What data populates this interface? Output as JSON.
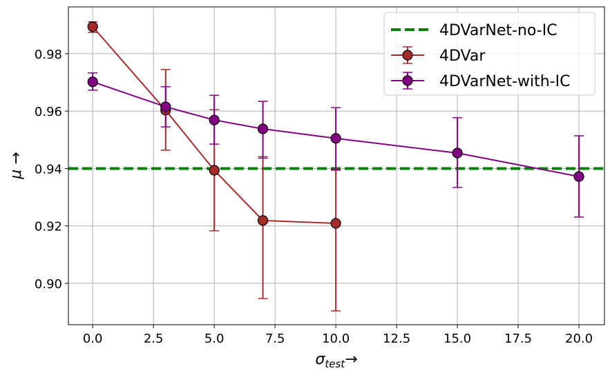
{
  "chart_data": {
    "type": "line",
    "xlabel": "σ_test →",
    "xlabel_main": "σ",
    "xlabel_sub": "test",
    "xlabel_arrow": "→",
    "ylabel": "μ →",
    "xlim": [
      -1.0,
      21.05
    ],
    "ylim": [
      0.8856,
      0.9963
    ],
    "grid": true,
    "legend_placement": "top-right",
    "xticks": [
      0.0,
      2.5,
      5.0,
      7.5,
      10.0,
      12.5,
      15.0,
      17.5,
      20.0
    ],
    "xtick_labels": [
      "0.0",
      "2.5",
      "5.0",
      "7.5",
      "10.0",
      "12.5",
      "15.0",
      "17.5",
      "20.0"
    ],
    "yticks": [
      0.9,
      0.92,
      0.94,
      0.96,
      0.98
    ],
    "ytick_labels": [
      "0.90",
      "0.92",
      "0.94",
      "0.96",
      "0.98"
    ],
    "hline": {
      "name": "4DVarNet-no-IC",
      "y": 0.94,
      "color": "#008000",
      "style": "dashed"
    },
    "series": [
      {
        "name": "4DVar",
        "color": "#a52a2a",
        "x": [
          0,
          3,
          5,
          7,
          10
        ],
        "y": [
          0.9894,
          0.9603,
          0.9394,
          0.9219,
          0.9209
        ],
        "err_low": [
          0.9874,
          0.9464,
          0.9183,
          0.8947,
          0.8904
        ],
        "err_high": [
          0.9911,
          0.9745,
          0.9605,
          0.9441,
          0.9394
        ]
      },
      {
        "name": "4DVarNet-with-IC",
        "color": "#800080",
        "x": [
          0,
          3,
          5,
          7,
          10,
          15,
          20
        ],
        "y": [
          0.9702,
          0.9615,
          0.9569,
          0.9538,
          0.9505,
          0.9454,
          0.9372
        ],
        "err_low": [
          0.9673,
          0.9545,
          0.9485,
          0.9436,
          0.9397,
          0.9334,
          0.9231
        ],
        "err_high": [
          0.9733,
          0.9685,
          0.9655,
          0.9634,
          0.9612,
          0.9577,
          0.9514
        ]
      }
    ]
  }
}
